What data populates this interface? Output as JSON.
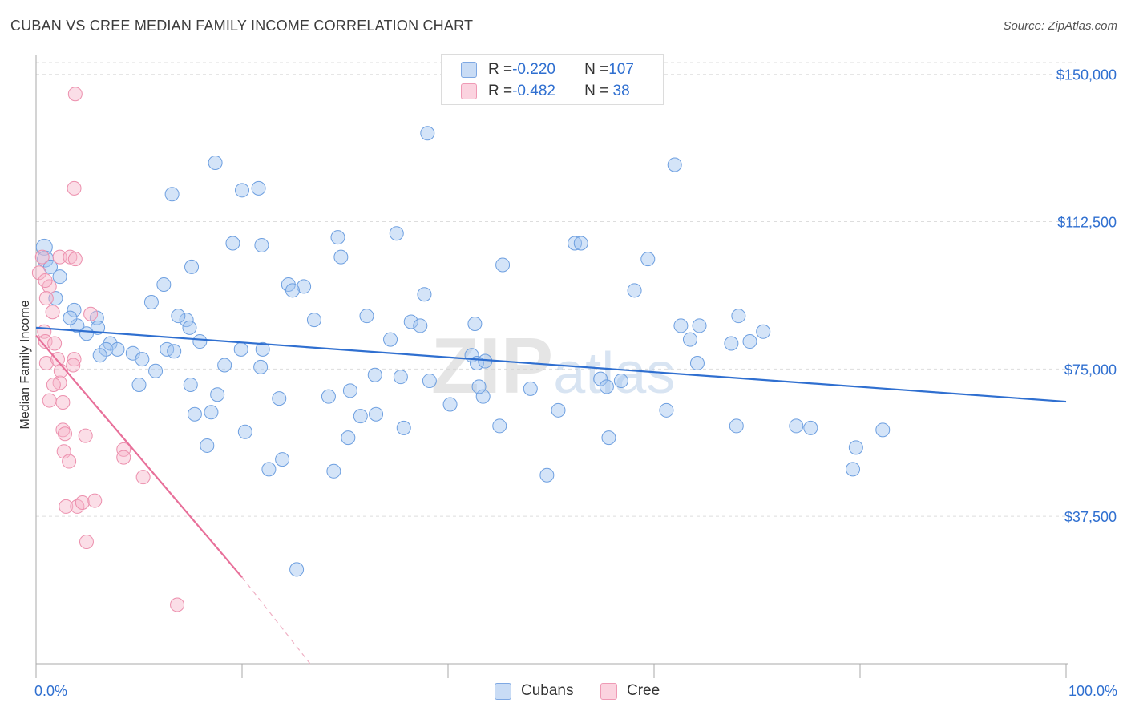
{
  "title": "CUBAN VS CREE MEDIAN FAMILY INCOME CORRELATION CHART",
  "source": "Source: ZipAtlas.com",
  "watermark": "ZIPatlas",
  "legend_box": {
    "rows": [
      {
        "r_label": "R = ",
        "r_value": "-0.220",
        "n_label": "N = ",
        "n_value": "107",
        "color": "#a9c6f0"
      },
      {
        "r_label": "R = ",
        "r_value": "-0.482",
        "n_label": "N = ",
        "n_value": " 38",
        "color": "#f6b6c9"
      }
    ]
  },
  "bottom_legend": [
    {
      "label": "Cubans",
      "color": "#a9c6f0"
    },
    {
      "label": "Cree",
      "color": "#f6b6c9"
    }
  ],
  "chart_data": {
    "type": "scatter",
    "xlabel": "",
    "ylabel": "Median Family Income",
    "x_tick_labels": [
      "0.0%",
      "100.0%"
    ],
    "y_tick_labels": [
      "$37,500",
      "$75,000",
      "$112,500",
      "$150,000"
    ],
    "y_ticks": [
      37500,
      75000,
      112500,
      150000
    ],
    "xlim": [
      0,
      100
    ],
    "ylim": [
      0,
      153000
    ],
    "grid": true,
    "series": [
      {
        "name": "Cubans",
        "color": "#6d9fe0",
        "fill": "rgba(160,195,240,0.45)",
        "trend": {
          "x": [
            0,
            100
          ],
          "y": [
            85500,
            66700
          ]
        },
        "points": [
          [
            0.8,
            106000
          ],
          [
            0.9,
            103000
          ],
          [
            1.4,
            101000
          ],
          [
            2.3,
            98500
          ],
          [
            1.9,
            93000
          ],
          [
            3.7,
            90000
          ],
          [
            4.0,
            86000
          ],
          [
            3.3,
            88000
          ],
          [
            5.9,
            88000
          ],
          [
            6.0,
            85500
          ],
          [
            4.9,
            84000
          ],
          [
            7.2,
            81500
          ],
          [
            6.8,
            80000
          ],
          [
            7.9,
            80000
          ],
          [
            6.2,
            78500
          ],
          [
            9.4,
            79000
          ],
          [
            11.2,
            92000
          ],
          [
            10.3,
            77500
          ],
          [
            11.6,
            74500
          ],
          [
            10.0,
            71000
          ],
          [
            12.4,
            96500
          ],
          [
            12.7,
            80000
          ],
          [
            13.2,
            119500
          ],
          [
            14.6,
            87500
          ],
          [
            13.4,
            79500
          ],
          [
            14.9,
            85500
          ],
          [
            13.8,
            88500
          ],
          [
            15.1,
            101000
          ],
          [
            15.0,
            71000
          ],
          [
            15.9,
            82000
          ],
          [
            15.4,
            63500
          ],
          [
            16.6,
            55500
          ],
          [
            17.0,
            64000
          ],
          [
            17.4,
            127500
          ],
          [
            17.6,
            68500
          ],
          [
            18.3,
            76000
          ],
          [
            19.1,
            107000
          ],
          [
            19.9,
            80000
          ],
          [
            20.0,
            120500
          ],
          [
            21.6,
            121000
          ],
          [
            20.3,
            59000
          ],
          [
            21.8,
            75500
          ],
          [
            22.0,
            80000
          ],
          [
            21.9,
            106500
          ],
          [
            22.6,
            49500
          ],
          [
            23.9,
            52000
          ],
          [
            23.6,
            67500
          ],
          [
            24.5,
            96500
          ],
          [
            26.0,
            96000
          ],
          [
            24.9,
            95000
          ],
          [
            25.3,
            24000
          ],
          [
            27.0,
            87500
          ],
          [
            28.4,
            68000
          ],
          [
            28.9,
            49000
          ],
          [
            29.3,
            108500
          ],
          [
            29.6,
            103500
          ],
          [
            30.3,
            57500
          ],
          [
            30.5,
            69500
          ],
          [
            31.5,
            63000
          ],
          [
            32.1,
            88500
          ],
          [
            32.9,
            73500
          ],
          [
            33.0,
            63500
          ],
          [
            34.4,
            82500
          ],
          [
            35.4,
            73000
          ],
          [
            35.7,
            60000
          ],
          [
            35.0,
            109500
          ],
          [
            36.4,
            87000
          ],
          [
            37.3,
            86000
          ],
          [
            37.7,
            94000
          ],
          [
            38.2,
            72000
          ],
          [
            38.0,
            135000
          ],
          [
            40.2,
            66000
          ],
          [
            42.6,
            86500
          ],
          [
            42.3,
            78500
          ],
          [
            42.8,
            76500
          ],
          [
            43.4,
            68000
          ],
          [
            43.0,
            70500
          ],
          [
            43.6,
            77000
          ],
          [
            45.3,
            101500
          ],
          [
            45.0,
            60500
          ],
          [
            48.0,
            70000
          ],
          [
            49.6,
            48000
          ],
          [
            50.7,
            64500
          ],
          [
            52.3,
            107000
          ],
          [
            52.9,
            107000
          ],
          [
            54.8,
            72500
          ],
          [
            55.4,
            70500
          ],
          [
            55.6,
            57500
          ],
          [
            56.8,
            72000
          ],
          [
            58.1,
            95000
          ],
          [
            59.4,
            103000
          ],
          [
            61.2,
            64500
          ],
          [
            62.0,
            127000
          ],
          [
            62.6,
            86000
          ],
          [
            63.5,
            82500
          ],
          [
            64.4,
            86000
          ],
          [
            64.2,
            76500
          ],
          [
            68.0,
            60500
          ],
          [
            67.5,
            81500
          ],
          [
            68.2,
            88500
          ],
          [
            69.3,
            82000
          ],
          [
            70.6,
            84500
          ],
          [
            73.8,
            60500
          ],
          [
            75.2,
            60000
          ],
          [
            79.6,
            55000
          ],
          [
            79.3,
            49500
          ],
          [
            82.2,
            59500
          ]
        ]
      },
      {
        "name": "Cree",
        "color": "#ec8fad",
        "fill": "rgba(246,182,201,0.45)",
        "trend": {
          "x": [
            0,
            20
          ],
          "y": [
            83500,
            22000
          ]
        },
        "trend_dashed": {
          "x": [
            20,
            26.6
          ],
          "y": [
            22000,
            0
          ]
        },
        "points": [
          [
            3.8,
            145000
          ],
          [
            0.3,
            99500
          ],
          [
            0.6,
            103500
          ],
          [
            1.3,
            96000
          ],
          [
            2.3,
            103500
          ],
          [
            3.3,
            103500
          ],
          [
            0.9,
            97500
          ],
          [
            1.0,
            93000
          ],
          [
            0.8,
            84500
          ],
          [
            0.9,
            82000
          ],
          [
            1.0,
            76500
          ],
          [
            1.8,
            81500
          ],
          [
            1.6,
            89500
          ],
          [
            2.1,
            77500
          ],
          [
            2.3,
            71500
          ],
          [
            2.6,
            66500
          ],
          [
            1.3,
            67000
          ],
          [
            1.7,
            71000
          ],
          [
            3.7,
            77500
          ],
          [
            3.7,
            121000
          ],
          [
            3.8,
            103000
          ],
          [
            5.3,
            89000
          ],
          [
            2.4,
            74500
          ],
          [
            3.6,
            76000
          ],
          [
            2.6,
            59500
          ],
          [
            2.8,
            58500
          ],
          [
            2.7,
            54000
          ],
          [
            4.8,
            58000
          ],
          [
            3.2,
            51500
          ],
          [
            2.9,
            40000
          ],
          [
            4.0,
            40000
          ],
          [
            4.5,
            41000
          ],
          [
            5.7,
            41500
          ],
          [
            4.9,
            31000
          ],
          [
            8.5,
            54500
          ],
          [
            8.5,
            52500
          ],
          [
            10.4,
            47500
          ],
          [
            13.7,
            15000
          ]
        ]
      }
    ]
  }
}
